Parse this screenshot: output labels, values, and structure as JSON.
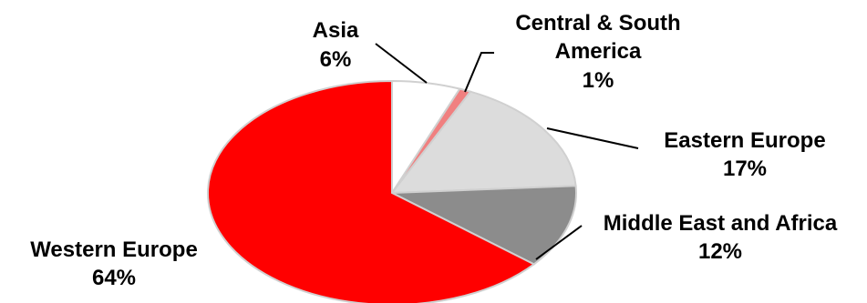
{
  "chart_data": {
    "type": "pie",
    "title": "",
    "start": "top, clockwise",
    "slices": [
      {
        "name": "Asia",
        "value": 6,
        "value_label": "6%",
        "color": "#ffffff"
      },
      {
        "name": "Central & South America",
        "name_lines": [
          "Central & South",
          "America"
        ],
        "value": 1,
        "value_label": "1%",
        "color": "#f08080"
      },
      {
        "name": "Eastern Europe",
        "value": 17,
        "value_label": "17%",
        "color": "#dcdcdc"
      },
      {
        "name": "Middle East and Africa",
        "value": 12,
        "value_label": "12%",
        "color": "#8c8c8c"
      },
      {
        "name": "Western Europe",
        "value": 64,
        "value_label": "64%",
        "color": "#ff0000"
      }
    ],
    "legend": "none",
    "labels": "outside with leader lines"
  }
}
